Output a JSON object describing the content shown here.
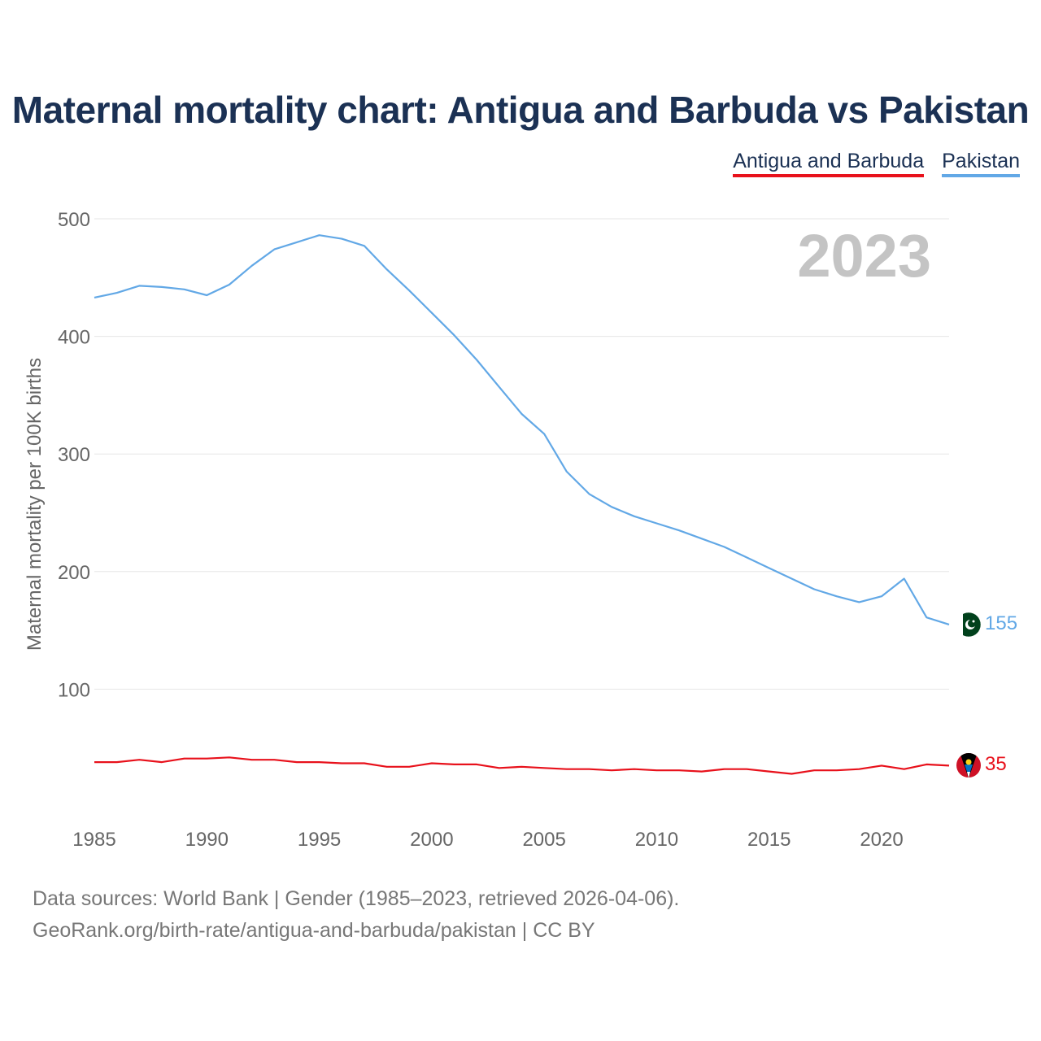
{
  "chart_data": {
    "type": "line",
    "title": "Maternal mortality chart: Antigua and Barbuda vs Pakistan",
    "ylabel": "Maternal mortality per 100K births",
    "xlabel": "",
    "xlim": [
      1985,
      2023
    ],
    "ylim": [
      0,
      500
    ],
    "yticks": [
      100,
      200,
      300,
      400,
      500
    ],
    "xticks": [
      1985,
      1990,
      1995,
      2000,
      2005,
      2010,
      2015,
      2020
    ],
    "year_label": "2023",
    "grid": true,
    "legend_position": "top-right",
    "x": [
      1985,
      1986,
      1987,
      1988,
      1989,
      1990,
      1991,
      1992,
      1993,
      1994,
      1995,
      1996,
      1997,
      1998,
      1999,
      2000,
      2001,
      2002,
      2003,
      2004,
      2005,
      2006,
      2007,
      2008,
      2009,
      2010,
      2011,
      2012,
      2013,
      2014,
      2015,
      2016,
      2017,
      2018,
      2019,
      2020,
      2021,
      2022,
      2023
    ],
    "series": [
      {
        "name": "Antigua and Barbuda",
        "color": "#e8111b",
        "end_label": "35",
        "values": [
          38,
          38,
          40,
          38,
          41,
          41,
          42,
          40,
          40,
          38,
          38,
          37,
          37,
          34,
          34,
          37,
          36,
          36,
          33,
          34,
          33,
          32,
          32,
          31,
          32,
          31,
          31,
          30,
          32,
          32,
          30,
          28,
          31,
          31,
          32,
          35,
          32,
          36,
          35
        ]
      },
      {
        "name": "Pakistan",
        "color": "#62a8e6",
        "end_label": "155",
        "values": [
          433,
          437,
          443,
          442,
          440,
          435,
          444,
          460,
          474,
          480,
          486,
          483,
          477,
          457,
          439,
          420,
          401,
          380,
          357,
          334,
          317,
          285,
          266,
          255,
          247,
          241,
          235,
          228,
          221,
          212,
          203,
          194,
          185,
          179,
          174,
          179,
          194,
          161,
          155
        ]
      }
    ]
  },
  "footer": {
    "line1": "Data sources: World Bank | Gender (1985–2023, retrieved 2026-04-06).",
    "line2": "GeoRank.org/birth-rate/antigua-and-barbuda/pakistan | CC BY"
  },
  "flags": {
    "pakistan": "pakistan-flag-icon",
    "antigua": "antigua-and-barbuda-flag-icon"
  }
}
